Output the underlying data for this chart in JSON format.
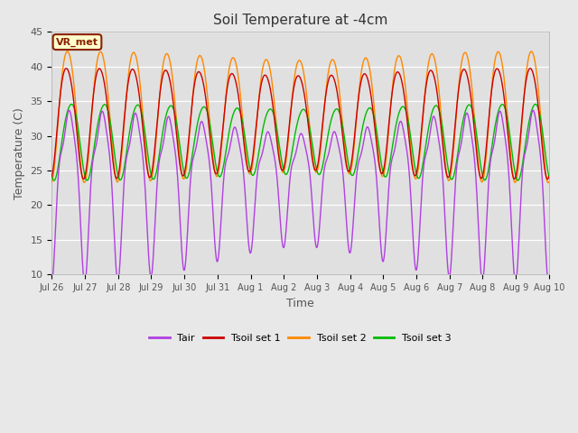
{
  "title": "Soil Temperature at -4cm",
  "xlabel": "Time",
  "ylabel": "Temperature (C)",
  "ylim": [
    10,
    45
  ],
  "xlim": [
    0,
    360
  ],
  "legend_labels": [
    "Tair",
    "Tsoil set 1",
    "Tsoil set 2",
    "Tsoil set 3"
  ],
  "line_colors": [
    "#b040e0",
    "#cc0000",
    "#ff8800",
    "#00bb00"
  ],
  "fig_facecolor": "#e8e8e8",
  "plot_facecolor": "#e0e0e0",
  "annotation_text": "VR_met",
  "annotation_box_color": "#ffffcc",
  "annotation_border_color": "#8b2000",
  "tick_labels": [
    "Jul 26",
    "Jul 27",
    "Jul 28",
    "Jul 29",
    "Jul 30",
    "Jul 31",
    "Aug 1",
    "Aug 2",
    "Aug 3",
    "Aug 4",
    "Aug 5",
    "Aug 6",
    "Aug 7",
    "Aug 8",
    "Aug 9",
    "Aug 10"
  ],
  "tick_positions": [
    0,
    24,
    48,
    72,
    96,
    120,
    144,
    168,
    192,
    216,
    240,
    264,
    288,
    312,
    336,
    360
  ],
  "yticks": [
    10,
    15,
    20,
    25,
    30,
    35,
    40,
    45
  ],
  "period_hours": 24,
  "n_points": 2161
}
